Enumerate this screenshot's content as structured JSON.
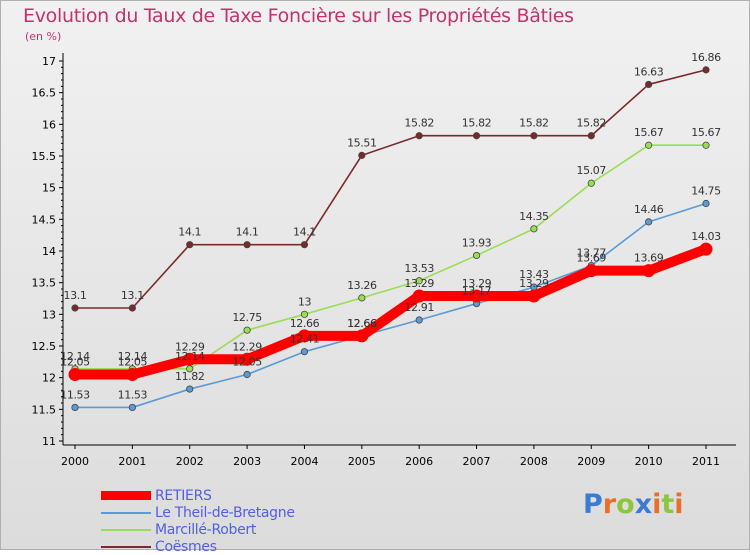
{
  "title": "Evolution du Taux de Taxe Foncière sur les Propriétés Bâties",
  "subtitle": "(en %)",
  "logo_text": "Proxiti",
  "chart_data": {
    "type": "line",
    "x": [
      "2000",
      "2001",
      "2002",
      "2003",
      "2004",
      "2005",
      "2006",
      "2007",
      "2008",
      "2009",
      "2010",
      "2011"
    ],
    "ylim": [
      11,
      17
    ],
    "yticks": [
      "11",
      "11.5",
      "12",
      "12.5",
      "13",
      "13.5",
      "14",
      "14.5",
      "15",
      "15.5",
      "16",
      "16.5",
      "17"
    ],
    "ytick_values": [
      11,
      11.5,
      12,
      12.5,
      13,
      13.5,
      14,
      14.5,
      15,
      15.5,
      16,
      16.5,
      17
    ],
    "grid": false,
    "legend_position": "bottom-left",
    "series": [
      {
        "name": "RETIERS",
        "color": "#ff0000",
        "values": [
          12.05,
          12.05,
          12.29,
          12.29,
          12.66,
          12.66,
          13.29,
          13.29,
          13.29,
          13.69,
          13.69,
          14.03
        ],
        "labels": [
          "12.05",
          "12.05",
          "12.29",
          "12.29",
          "12.66",
          "12.66",
          "13.29",
          "13.29",
          "13.29",
          "13.69",
          "13.69",
          "14.03"
        ]
      },
      {
        "name": "Le Theil-de-Bretagne",
        "color": "#5b9bd5",
        "values": [
          11.53,
          11.53,
          11.82,
          12.05,
          12.41,
          12.66,
          12.91,
          13.17,
          13.43,
          13.77,
          14.46,
          14.75
        ],
        "labels": [
          "11.53",
          "11.53",
          "11.82",
          "12.05",
          "12.41",
          "12.66",
          "12.91",
          "13.17",
          "13.43",
          "13.77",
          "14.46",
          "14.75"
        ]
      },
      {
        "name": "Marcillé-Robert",
        "color": "#99dd55",
        "values": [
          12.14,
          12.14,
          12.14,
          12.75,
          13,
          13.26,
          13.53,
          13.93,
          14.35,
          15.07,
          15.67,
          15.67
        ],
        "labels": [
          "12.14",
          "12.14",
          "12.14",
          "12.75",
          "13",
          "13.26",
          "13.53",
          "13.93",
          "14.35",
          "15.07",
          "15.67",
          "15.67"
        ]
      },
      {
        "name": "Coësmes",
        "color": "#7a2a2a",
        "values": [
          13.1,
          13.1,
          14.1,
          14.1,
          14.1,
          15.51,
          15.82,
          15.82,
          15.82,
          15.82,
          16.63,
          16.86
        ],
        "labels": [
          "13.1",
          "13.1",
          "14.1",
          "14.1",
          "14.1",
          "15.51",
          "15.82",
          "15.82",
          "15.82",
          "15.82",
          "16.63",
          "16.86"
        ]
      }
    ]
  },
  "colors": {
    "title": "#c2336e",
    "legend_text": "#5060e0",
    "axis": "#000000",
    "point_label": "#333333"
  }
}
